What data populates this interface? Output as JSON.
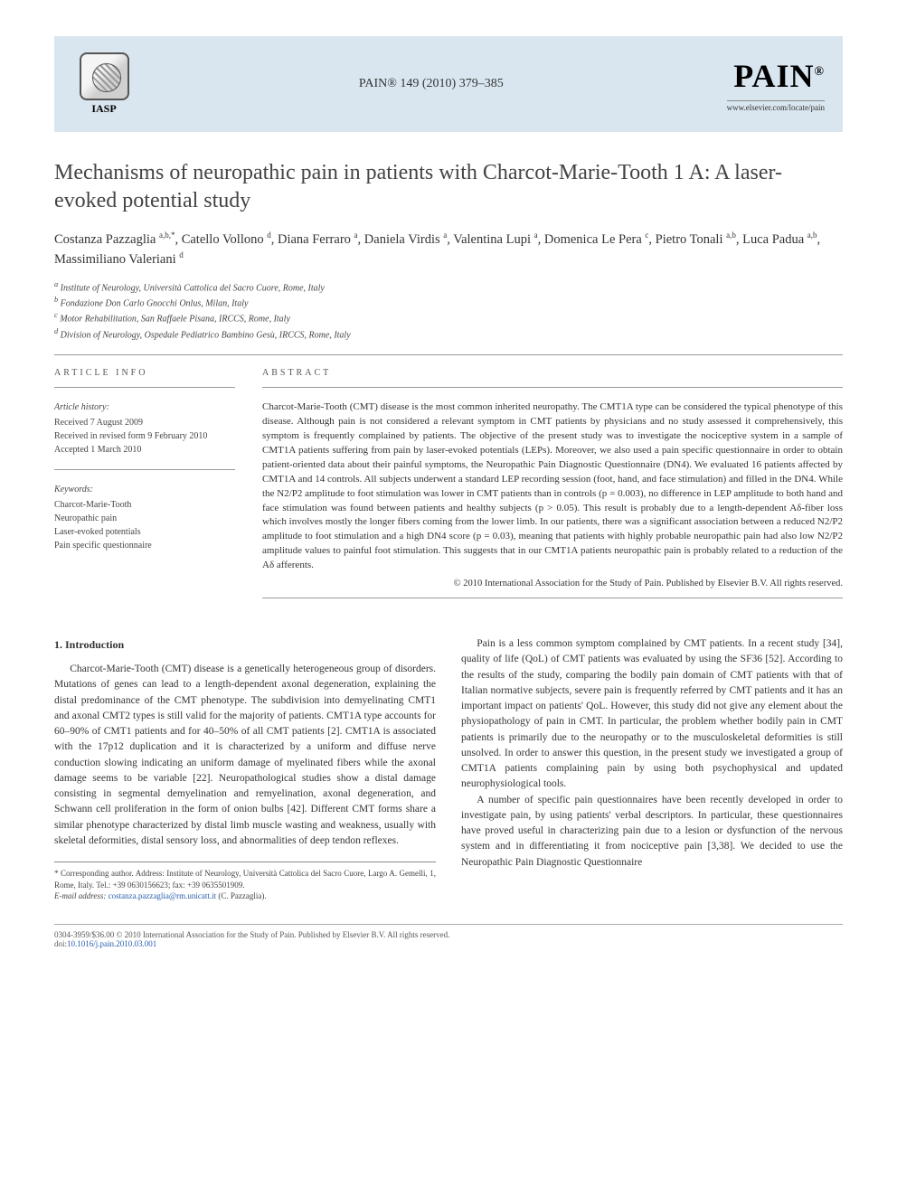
{
  "header": {
    "iasp_label": "IASP",
    "journal_ref": "PAIN® 149 (2010) 379–385",
    "pain_logo": "PAIN",
    "pain_reg": "®",
    "elsevier_link": "www.elsevier.com/locate/pain"
  },
  "title": "Mechanisms of neuropathic pain in patients with Charcot-Marie-Tooth 1 A: A laser-evoked potential study",
  "authors_html": "Costanza Pazzaglia <sup>a,b,*</sup>, Catello Vollono <sup>d</sup>, Diana Ferraro <sup>a</sup>, Daniela Virdis <sup>a</sup>, Valentina Lupi <sup>a</sup>, Domenica Le Pera <sup>c</sup>, Pietro Tonali <sup>a,b</sup>, Luca Padua <sup>a,b</sup>, Massimiliano Valeriani <sup>d</sup>",
  "affiliations": [
    "a Institute of Neurology, Università Cattolica del Sacro Cuore, Rome, Italy",
    "b Fondazione Don Carlo Gnocchi Onlus, Milan, Italy",
    "c Motor Rehabilitation, San Raffaele Pisana, IRCCS, Rome, Italy",
    "d Division of Neurology, Ospedale Pediatrico Bambino Gesù, IRCCS, Rome, Italy"
  ],
  "article_info_heading": "ARTICLE INFO",
  "abstract_heading": "ABSTRACT",
  "history_label": "Article history:",
  "history": [
    "Received 7 August 2009",
    "Received in revised form 9 February 2010",
    "Accepted 1 March 2010"
  ],
  "keywords_label": "Keywords:",
  "keywords": [
    "Charcot-Marie-Tooth",
    "Neuropathic pain",
    "Laser-evoked potentials",
    "Pain specific questionnaire"
  ],
  "abstract": "Charcot-Marie-Tooth (CMT) disease is the most common inherited neuropathy. The CMT1A type can be considered the typical phenotype of this disease. Although pain is not considered a relevant symptom in CMT patients by physicians and no study assessed it comprehensively, this symptom is frequently complained by patients. The objective of the present study was to investigate the nociceptive system in a sample of CMT1A patients suffering from pain by laser-evoked potentials (LEPs). Moreover, we also used a pain specific questionnaire in order to obtain patient-oriented data about their painful symptoms, the Neuropathic Pain Diagnostic Questionnaire (DN4). We evaluated 16 patients affected by CMT1A and 14 controls. All subjects underwent a standard LEP recording session (foot, hand, and face stimulation) and filled in the DN4. While the N2/P2 amplitude to foot stimulation was lower in CMT patients than in controls (p = 0.003), no difference in LEP amplitude to both hand and face stimulation was found between patients and healthy subjects (p > 0.05). This result is probably due to a length-dependent Aδ-fiber loss which involves mostly the longer fibers coming from the lower limb. In our patients, there was a significant association between a reduced N2/P2 amplitude to foot stimulation and a high DN4 score (p = 0.03), meaning that patients with highly probable neuropathic pain had also low N2/P2 amplitude values to painful foot stimulation. This suggests that in our CMT1A patients neuropathic pain is probably related to a reduction of the Aδ afferents.",
  "copyright": "© 2010 International Association for the Study of Pain. Published by Elsevier B.V. All rights reserved.",
  "section1_heading": "1. Introduction",
  "body": {
    "p1": "Charcot-Marie-Tooth (CMT) disease is a genetically heterogeneous group of disorders. Mutations of genes can lead to a length-dependent axonal degeneration, explaining the distal predominance of the CMT phenotype. The subdivision into demyelinating CMT1 and axonal CMT2 types is still valid for the majority of patients. CMT1A type accounts for 60–90% of CMT1 patients and for 40–50% of all CMT patients [2]. CMT1A is associated with the 17p12 duplication and it is characterized by a uniform and diffuse nerve conduction slowing indicating an uniform damage of myelinated fibers while the axonal damage seems to be variable [22]. Neuropathological studies show a distal damage consisting in segmental demyelination and remyelination, axonal degeneration, and Schwann cell proliferation in the form of onion bulbs [42]. Different CMT forms share a similar phenotype characterized by distal limb muscle wasting and weakness, usually with skeletal deformities, distal sensory loss, and abnormalities of deep tendon reflexes.",
    "p2": "Pain is a less common symptom complained by CMT patients. In a recent study [34], quality of life (QoL) of CMT patients was evaluated by using the SF36 [52]. According to the results of the study, comparing the bodily pain domain of CMT patients with that of Italian normative subjects, severe pain is frequently referred by CMT patients and it has an important impact on patients' QoL. However, this study did not give any element about the physiopathology of pain in CMT. In particular, the problem whether bodily pain in CMT patients is primarily due to the neuropathy or to the musculoskeletal deformities is still unsolved. In order to answer this question, in the present study we investigated a group of CMT1A patients complaining pain by using both psychophysical and updated neurophysiological tools.",
    "p3": "A number of specific pain questionnaires have been recently developed in order to investigate pain, by using patients' verbal descriptors. In particular, these questionnaires have proved useful in characterizing pain due to a lesion or dysfunction of the nervous system and in differentiating it from nociceptive pain [3,38]. We decided to use the Neuropathic Pain Diagnostic Questionnaire"
  },
  "footnote": {
    "corr": "* Corresponding author. Address: Institute of Neurology, Università Cattolica del Sacro Cuore, Largo A. Gemelli, 1, Rome, Italy. Tel.: +39 0630156623; fax: +39 0635501909.",
    "email_label": "E-mail address:",
    "email": "costanza.pazzaglia@rm.unicatt.it",
    "email_person": "(C. Pazzaglia)."
  },
  "footer": {
    "line1": "0304-3959/$36.00 © 2010 International Association for the Study of Pain. Published by Elsevier B.V. All rights reserved.",
    "doi_label": "doi:",
    "doi": "10.1016/j.pain.2010.03.001"
  },
  "colors": {
    "header_bg": "#d9e6ef",
    "text": "#333333",
    "link": "#2a5db0",
    "rule": "#999999"
  },
  "typography": {
    "title_pt": 24,
    "body_pt": 11.5,
    "abstract_pt": 11,
    "meta_pt": 10,
    "footnote_pt": 9
  }
}
